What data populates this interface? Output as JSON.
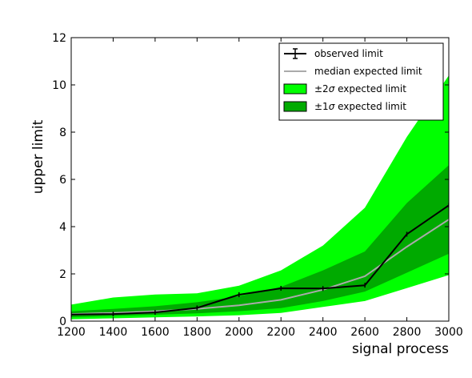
{
  "chart_data": {
    "type": "line",
    "xlabel": "signal process",
    "ylabel": "upper limit",
    "xlim": [
      1200,
      3000
    ],
    "ylim": [
      0,
      12
    ],
    "x_ticks": [
      1200,
      1400,
      1600,
      1800,
      2000,
      2200,
      2400,
      2600,
      2800,
      3000
    ],
    "y_ticks": [
      0,
      2,
      4,
      6,
      8,
      10,
      12
    ],
    "grid": false,
    "legend_position": "top-right",
    "x": [
      1200,
      1400,
      1600,
      1800,
      2000,
      2200,
      2400,
      2600,
      2800,
      3000
    ],
    "series": [
      {
        "name": "observed limit",
        "kind": "line-errorbar",
        "color": "#000000",
        "values": [
          0.28,
          0.3,
          0.37,
          0.56,
          1.12,
          1.39,
          1.38,
          1.52,
          3.68,
          4.9
        ]
      },
      {
        "name": "median expected limit",
        "kind": "line",
        "color": "#aaaaaa",
        "values": [
          0.3,
          0.35,
          0.42,
          0.52,
          0.67,
          0.9,
          1.33,
          1.9,
          3.15,
          4.3
        ]
      },
      {
        "name": "±2σ expected limit",
        "label_prefix": "±2",
        "label_sigma": "σ",
        "label_suffix": " expected limit",
        "kind": "band",
        "color": "#00ff00",
        "lower": [
          0.08,
          0.12,
          0.16,
          0.2,
          0.25,
          0.35,
          0.6,
          0.85,
          1.4,
          1.95
        ],
        "upper": [
          0.7,
          1.0,
          1.13,
          1.18,
          1.5,
          2.15,
          3.2,
          4.8,
          7.8,
          10.4
        ]
      },
      {
        "name": "±1σ expected limit",
        "label_prefix": "±1",
        "label_sigma": "σ",
        "label_suffix": " expected limit",
        "kind": "band",
        "color": "#00aa00",
        "lower": [
          0.17,
          0.22,
          0.27,
          0.33,
          0.42,
          0.55,
          0.85,
          1.25,
          2.05,
          2.85
        ],
        "upper": [
          0.42,
          0.52,
          0.63,
          0.8,
          1.05,
          1.45,
          2.15,
          2.95,
          5.0,
          6.6
        ]
      }
    ]
  }
}
